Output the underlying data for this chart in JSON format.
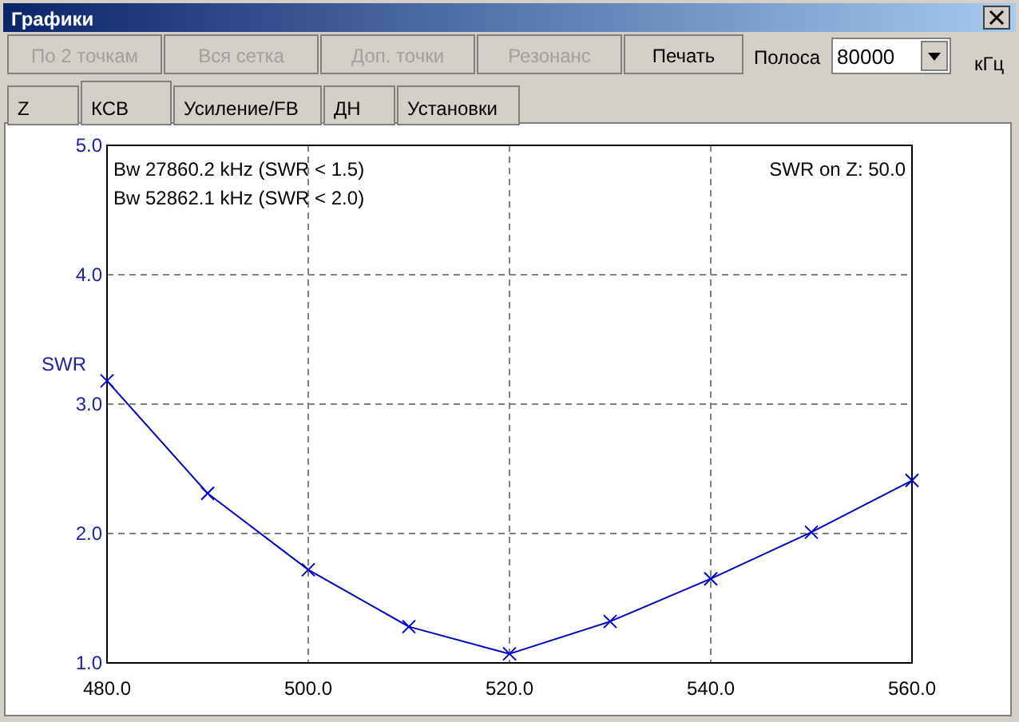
{
  "chart_data": {
    "type": "line",
    "title": "Графики",
    "ylabel": "SWR",
    "x": [
      480,
      490,
      500,
      510,
      520,
      530,
      540,
      550,
      560
    ],
    "series": [
      {
        "color": "#0000c0",
        "values": [
          3.18,
          2.31,
          1.72,
          1.28,
          1.07,
          1.32,
          1.65,
          2.01,
          2.41
        ]
      }
    ],
    "xlim": [
      480,
      560
    ],
    "xticks": [
      {
        "value": 480,
        "label": "480.0"
      },
      {
        "value": 500,
        "label": "500.0"
      },
      {
        "value": 520,
        "label": "520.0"
      },
      {
        "value": 540,
        "label": "540.0"
      },
      {
        "value": 560,
        "label": "560.0"
      }
    ],
    "ylim": [
      1,
      5
    ],
    "yticks": [
      {
        "value": 1,
        "label": "1.0"
      },
      {
        "value": 2,
        "label": "2.0"
      },
      {
        "value": 3,
        "label": "3.0"
      },
      {
        "value": 4,
        "label": "4.0"
      },
      {
        "value": 5,
        "label": "5.0"
      }
    ],
    "grid": true,
    "marker": "cross",
    "line_style": "solid",
    "annotations": [
      "Bw 27860.2 kHz (SWR < 1.5)",
      "Bw 52862.1 kHz (SWR < 2.0)",
      "SWR on Z: 50.0",
      "По 2 точкам",
      "Вся сетка",
      "Доп. точки",
      "Резонанс",
      "Печать",
      "Полоса",
      "80000",
      "кГц",
      "Z",
      "КСВ",
      "Усиление/FB",
      "ДН",
      "Установки"
    ]
  }
}
